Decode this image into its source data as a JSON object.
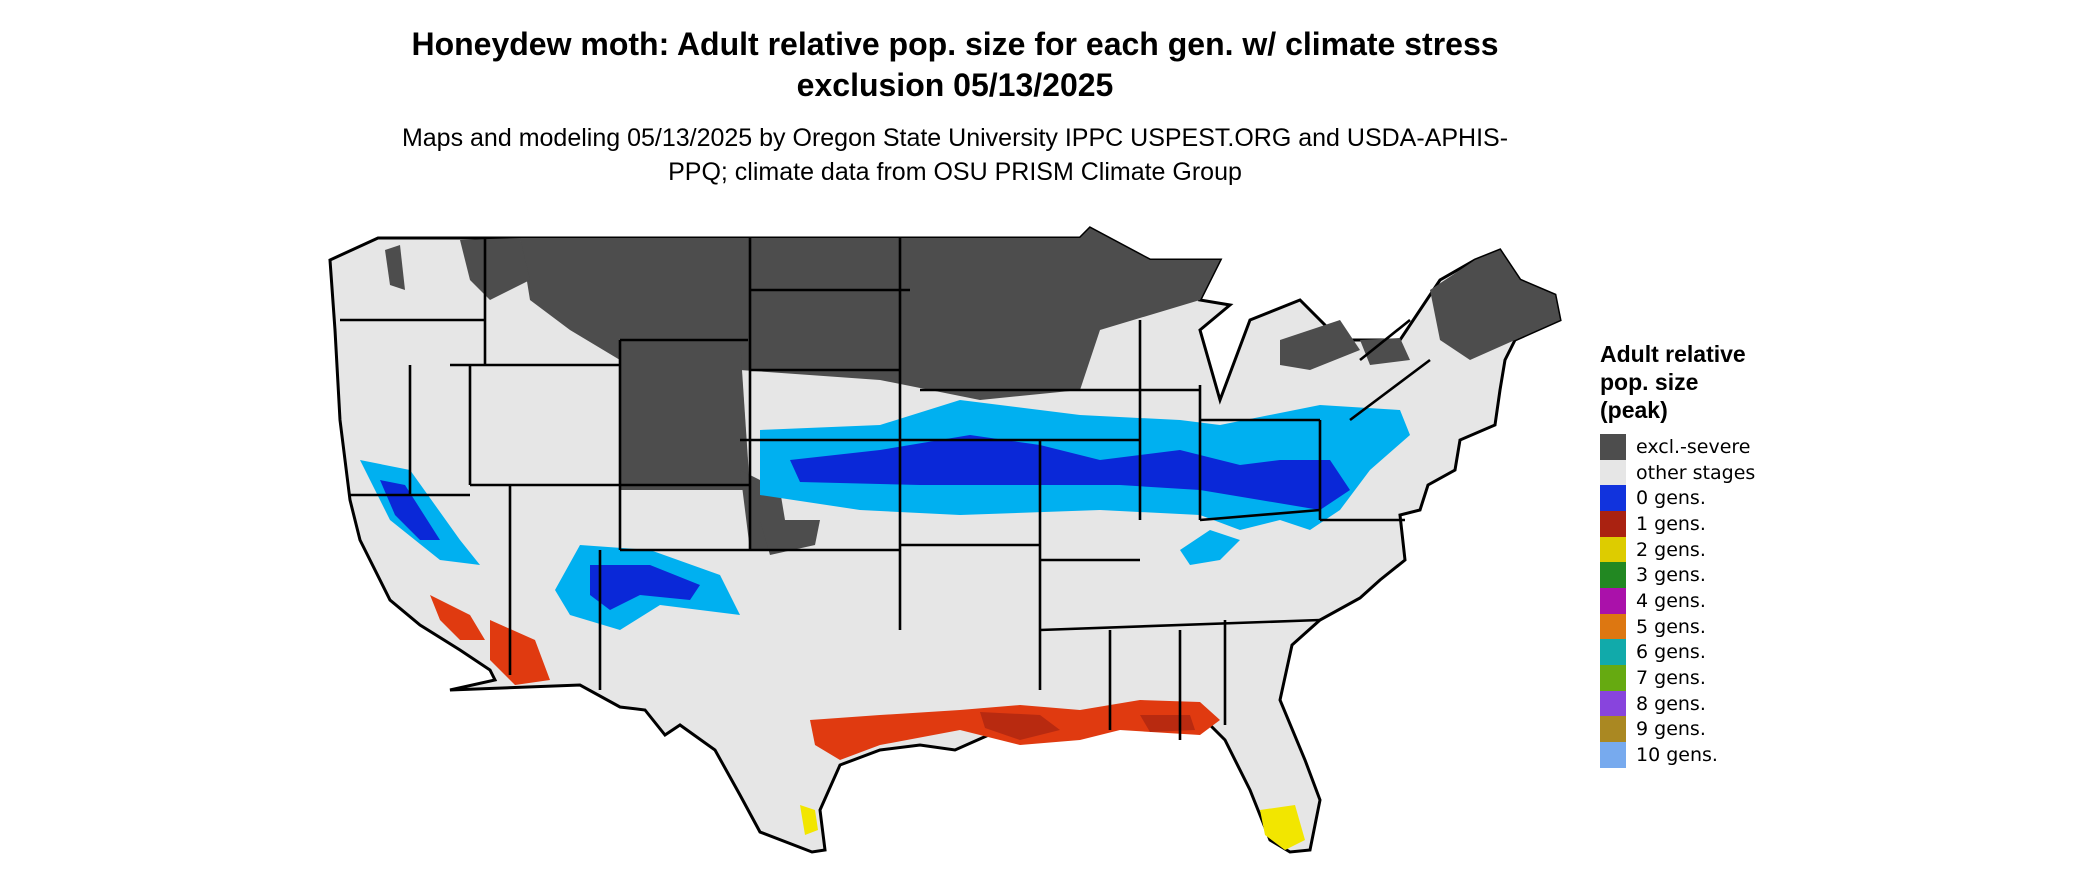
{
  "title": "Honeydew moth: Adult relative pop. size for each gen. w/ climate stress exclusion 05/13/2025",
  "subtitle": "Maps and modeling 05/13/2025 by Oregon State University IPPC USPEST.ORG and USDA-APHIS-PPQ; climate data from OSU PRISM Climate Group",
  "map": {
    "region": "Contiguous United States",
    "colors": {
      "land": "#e6e6e6",
      "excluded": "#4d4d4d",
      "border": "#000000"
    }
  },
  "legend": {
    "title": "Adult relative\npop. size\n(peak)",
    "items": [
      {
        "label": "excl.-severe",
        "color": "#4d4d4d"
      },
      {
        "label": "other stages",
        "color": "#e6e6e6"
      },
      {
        "label": "0 gens.",
        "color": "#1133dd"
      },
      {
        "label": "1 gens.",
        "color": "#aa2211"
      },
      {
        "label": "2 gens.",
        "color": "#ddcc00"
      },
      {
        "label": "3 gens.",
        "color": "#228822"
      },
      {
        "label": "4 gens.",
        "color": "#aa11aa"
      },
      {
        "label": "5 gens.",
        "color": "#dd7711"
      },
      {
        "label": "6 gens.",
        "color": "#11aaaa"
      },
      {
        "label": "7 gens.",
        "color": "#66aa11"
      },
      {
        "label": "8 gens.",
        "color": "#8844dd"
      },
      {
        "label": "9 gens.",
        "color": "#aa8822"
      },
      {
        "label": "10 gens.",
        "color": "#77aaee"
      }
    ]
  },
  "zone_colors": {
    "light_blue": "#00b0f0",
    "dark_blue": "#0a28d8",
    "mid_blue": "#1e6ee8",
    "red": "#e03a10",
    "dark_red": "#b82a10",
    "yellow": "#f2e600"
  }
}
